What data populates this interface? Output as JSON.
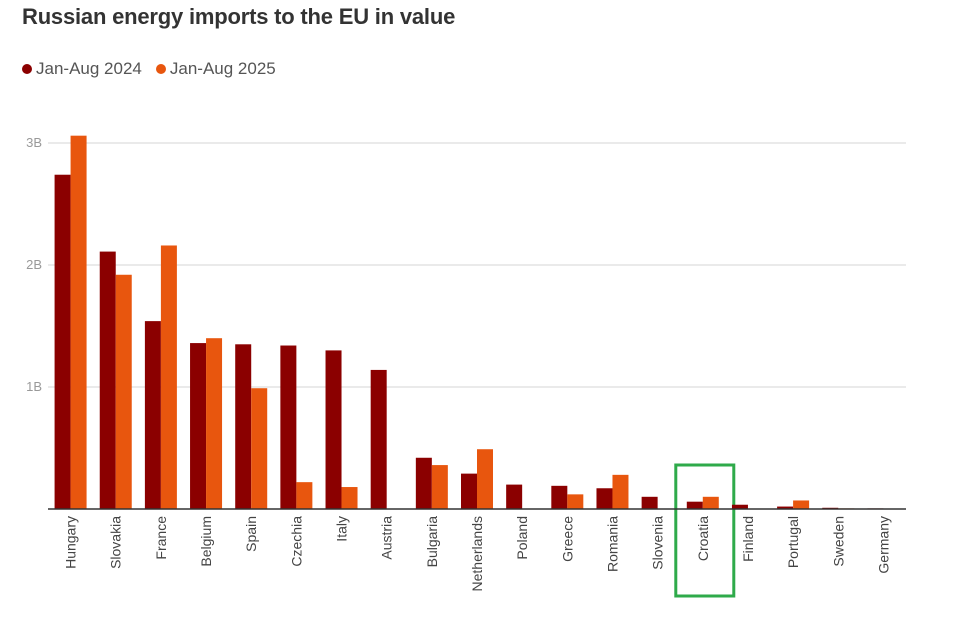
{
  "chart_data": {
    "type": "bar",
    "title": "Russian energy imports to the EU in value",
    "xlabel": "",
    "ylabel": "",
    "ylim": [
      0,
      3000000000
    ],
    "yticks": [
      {
        "value": 1000000000,
        "label": "1B"
      },
      {
        "value": 2000000000,
        "label": "2B"
      },
      {
        "value": 3000000000,
        "label": "3B"
      }
    ],
    "categories": [
      "Hungary",
      "Slovakia",
      "France",
      "Belgium",
      "Spain",
      "Czechia",
      "Italy",
      "Austria",
      "Bulgaria",
      "Netherlands",
      "Poland",
      "Greece",
      "Romania",
      "Slovenia",
      "Croatia",
      "Finland",
      "Portugal",
      "Sweden",
      "Germany"
    ],
    "series": [
      {
        "name": "Jan-Aug 2024",
        "color": "#8b0000",
        "values": [
          2740000000,
          2110000000,
          1540000000,
          1360000000,
          1350000000,
          1340000000,
          1300000000,
          1140000000,
          420000000,
          290000000,
          200000000,
          190000000,
          170000000,
          100000000,
          60000000,
          35000000,
          20000000,
          10000000,
          5000000
        ]
      },
      {
        "name": "Jan-Aug 2025",
        "color": "#e8560e",
        "values": [
          3060000000,
          1920000000,
          2160000000,
          1400000000,
          990000000,
          220000000,
          180000000,
          0,
          360000000,
          490000000,
          0,
          120000000,
          280000000,
          0,
          100000000,
          0,
          70000000,
          5000000,
          3000000
        ]
      }
    ],
    "highlight": "Croatia",
    "highlight_color": "#2eaa4a",
    "grid": true,
    "legend_position": "top-left"
  }
}
